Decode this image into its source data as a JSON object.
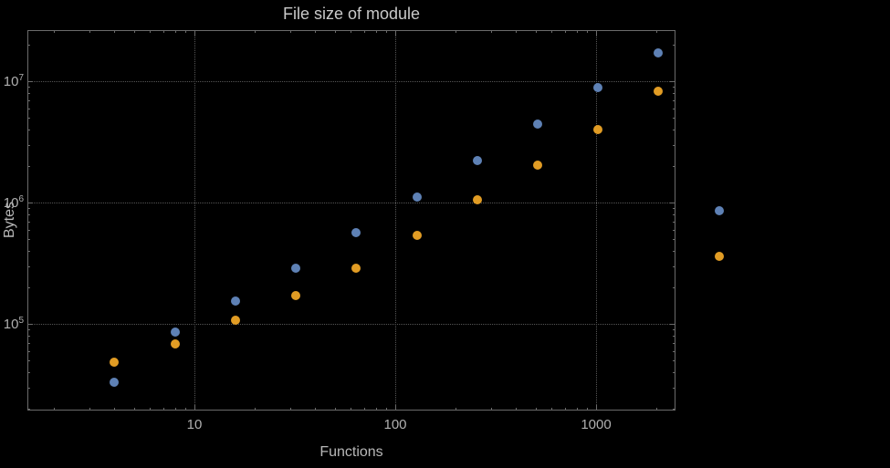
{
  "chart_data": {
    "type": "scatter",
    "title": "File size of module",
    "xlabel": "Functions",
    "ylabel": "Bytes",
    "x_scale": "log",
    "y_scale": "log",
    "grid": true,
    "legend": false,
    "x_ticks": [
      10,
      100,
      1000
    ],
    "x_tick_labels": [
      "10",
      "100",
      "1000"
    ],
    "y_ticks": [
      100000,
      1000000,
      10000000
    ],
    "y_tick_labels": [
      "10^5",
      "10^6",
      "10^7"
    ],
    "x_range": [
      1.5,
      2480
    ],
    "y_range": [
      19000,
      26000000
    ],
    "series": [
      {
        "name": "series-blue",
        "color": "#5e81b5",
        "points": [
          [
            4,
            33000
          ],
          [
            8,
            85000
          ],
          [
            16,
            155000
          ],
          [
            32,
            290000
          ],
          [
            64,
            560000
          ],
          [
            128,
            1100000
          ],
          [
            256,
            2200000
          ],
          [
            512,
            4400000
          ],
          [
            1024,
            8800000
          ],
          [
            2048,
            17000000
          ],
          [
            4096,
            850000
          ]
        ]
      },
      {
        "name": "series-orange",
        "color": "#e19c24",
        "points": [
          [
            4,
            48000
          ],
          [
            8,
            68000
          ],
          [
            16,
            108000
          ],
          [
            32,
            170000
          ],
          [
            64,
            290000
          ],
          [
            128,
            540000
          ],
          [
            256,
            1050000
          ],
          [
            512,
            2050000
          ],
          [
            1024,
            4000000
          ],
          [
            2048,
            8200000
          ],
          [
            4096,
            360000
          ]
        ]
      }
    ]
  },
  "colors": {
    "background": "#000000",
    "frame": "#6b6b6b",
    "grid": "#565656",
    "title": "#c9c9c9",
    "axis_label": "#b8b8b8",
    "tick_label": "#b0b0b0",
    "series_blue": "#5e81b5",
    "series_orange": "#e19c24"
  }
}
